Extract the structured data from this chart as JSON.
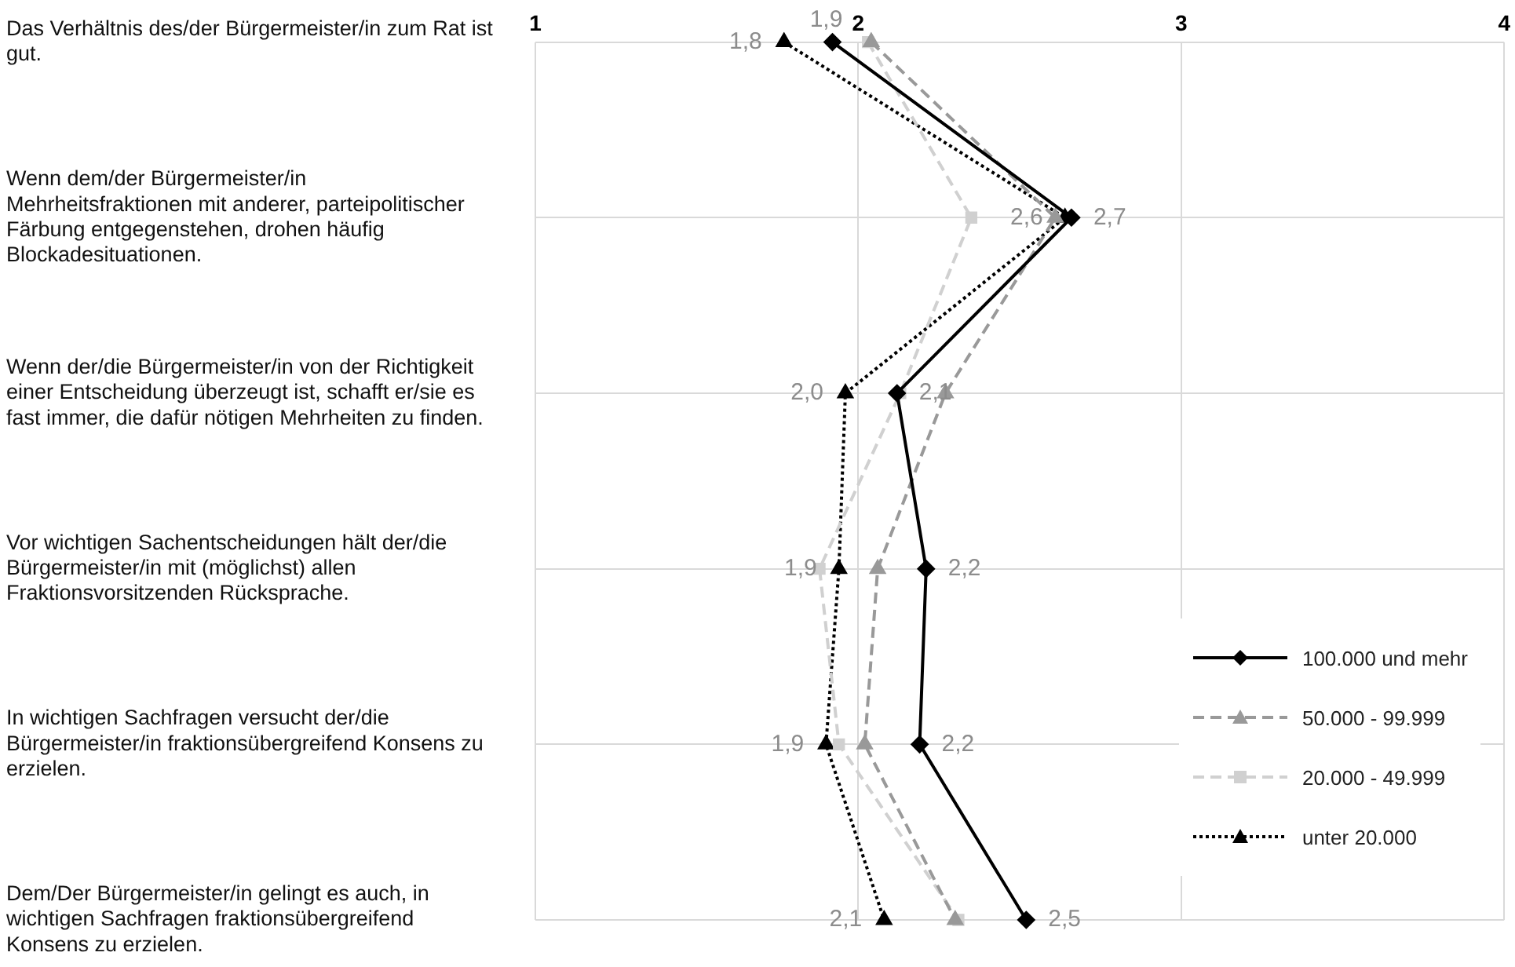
{
  "chart_data": {
    "type": "line",
    "orientation": "horizontal",
    "categories": [
      "Das Verhältnis des/der Bürgermeister/in zum Rat ist gut.",
      "Wenn dem/der Bürgermeister/in Mehrheitsfraktionen mit anderer, parteipolitischer Färbung entgegenstehen, drohen häufig Blockadesituationen.",
      "Wenn der/die Bürgermeister/in von der Richtigkeit einer Entscheidung überzeugt ist, schafft er/sie es fast immer, die dafür nötigen Mehrheiten zu finden.",
      "Vor wichtigen Sachentscheidungen hält der/die Bürgermeister/in mit (möglichst) allen Fraktionsvorsitzenden Rücksprache.",
      "In wichtigen Sachfragen versucht der/die Bürgermeister/in fraktionsübergreifend Konsens zu erzielen.",
      "Dem/Der Bürgermeister/in gelingt es auch, in wichtigen Sachfragen fraktionsübergreifend Konsens zu erzielen."
    ],
    "series": [
      {
        "name": "100.000 und mehr",
        "color": "#000000",
        "marker": "diamond",
        "line_style": "solid",
        "values": [
          1.92,
          2.66,
          2.12,
          2.21,
          2.19,
          2.52
        ],
        "value_labels": [
          "1,9",
          "2,7",
          "2,1",
          "2,2",
          "2,2",
          "2,5"
        ]
      },
      {
        "name": "50.000 - 99.999",
        "color": "#999999",
        "marker": "triangle",
        "line_style": "dashed",
        "values": [
          2.04,
          2.61,
          2.27,
          2.06,
          2.02,
          2.3
        ]
      },
      {
        "name": "20.000 - 49.999",
        "color": "#d0d0d0",
        "marker": "square",
        "line_style": "dashed",
        "values": [
          2.03,
          2.35,
          2.13,
          1.88,
          1.94,
          2.31
        ]
      },
      {
        "name": "unter 20.000",
        "color": "#000000",
        "marker": "triangle",
        "line_style": "dotted",
        "values": [
          1.77,
          2.64,
          1.96,
          1.94,
          1.9,
          2.08
        ],
        "value_labels": [
          "1,8",
          "2,6",
          "2,0",
          "1,9",
          "1,9",
          "2,1"
        ]
      }
    ],
    "xlim": [
      1,
      4
    ],
    "xticks": [
      1,
      2,
      3,
      4
    ],
    "grid": true,
    "legend": "bottom right"
  }
}
